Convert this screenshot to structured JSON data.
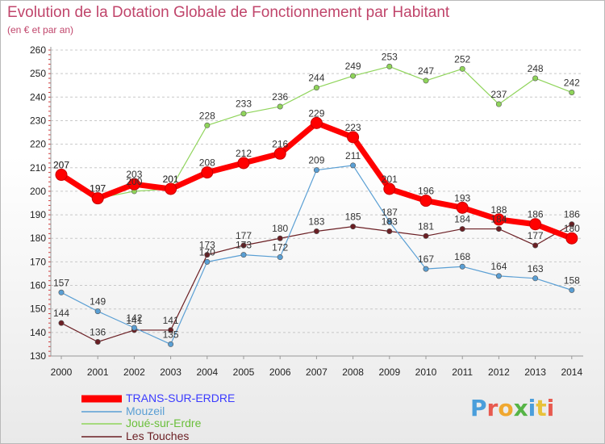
{
  "header": {
    "title": "Evolution de la Dotation Globale de Fonctionnement par Habitant",
    "subtitle": "(en € et par an)"
  },
  "logo": {
    "letters": [
      {
        "char": "P",
        "color": "#4a9edb"
      },
      {
        "char": "r",
        "color": "#e85a4f"
      },
      {
        "char": "o",
        "color": "#f0a830"
      },
      {
        "char": "x",
        "color": "#56b446"
      },
      {
        "char": "i",
        "color": "#4a9edb"
      },
      {
        "char": "t",
        "color": "#e8c23a"
      },
      {
        "char": "i",
        "color": "#e85a4f"
      }
    ]
  },
  "chart_data": {
    "type": "line",
    "title": "Evolution de la Dotation Globale de Fonctionnement par Habitant",
    "subtitle": "(en € et par an)",
    "xlabel": "",
    "ylabel": "",
    "x": [
      "2000",
      "2001",
      "2002",
      "2003",
      "2004",
      "2005",
      "2006",
      "2007",
      "2008",
      "2009",
      "2010",
      "2011",
      "2012",
      "2013",
      "2014"
    ],
    "ylim": [
      130,
      260
    ],
    "yticks": [
      130,
      140,
      150,
      160,
      170,
      180,
      190,
      200,
      210,
      220,
      230,
      240,
      250,
      260
    ],
    "grid": "horizontal dashed",
    "legend_position": "bottom-left",
    "series": [
      {
        "name": "TRANS-SUR-ERDRE",
        "color": "#ff0000",
        "values": [
          207,
          197,
          203,
          201,
          208,
          212,
          216,
          229,
          223,
          201,
          196,
          193,
          188,
          186,
          180
        ]
      },
      {
        "name": "Mouzeil",
        "color": "#5a9fd4",
        "values": [
          157,
          149,
          142,
          135,
          170,
          173,
          172,
          209,
          211,
          187,
          167,
          168,
          164,
          163,
          158
        ]
      },
      {
        "name": "Joué-sur-Erdre",
        "color": "#8fd45a",
        "values": [
          207,
          197,
          200,
          201,
          228,
          233,
          236,
          244,
          249,
          253,
          247,
          252,
          237,
          248,
          242
        ]
      },
      {
        "name": "Les Touches",
        "color": "#6b1f24",
        "values": [
          144,
          136,
          141,
          141,
          173,
          177,
          180,
          183,
          185,
          183,
          181,
          184,
          184,
          177,
          186
        ]
      }
    ]
  }
}
